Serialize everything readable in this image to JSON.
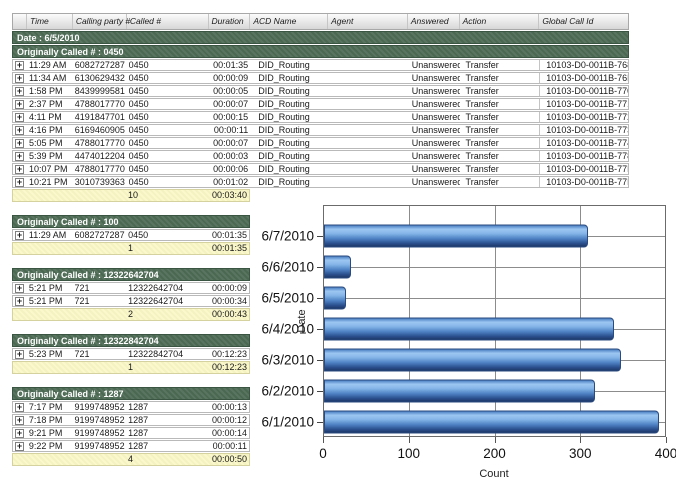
{
  "header": {
    "columns": [
      "Time",
      "Calling party #",
      "Called #",
      "Duration",
      "ACD Name",
      "Agent",
      "Answered",
      "Action",
      "Global Call Id"
    ]
  },
  "date_group_label": "Date : 6/5/2010",
  "icons": {
    "expand": "+"
  },
  "sections": [
    {
      "title": "Originally Called # : 0450",
      "wide": true,
      "rows": [
        {
          "time": "11:29 AM",
          "calling": "6082727287",
          "called": "0450",
          "duration": "00:01:35",
          "acd": "DID_Routing",
          "agent": "",
          "answered": "Unanswered",
          "action": "Transfer",
          "global_id": "10103-D0-0011B-768"
        },
        {
          "time": "11:34 AM",
          "calling": "6130629432",
          "called": "0450",
          "duration": "00:00:09",
          "acd": "DID_Routing",
          "agent": "",
          "answered": "Unanswered",
          "action": "Transfer",
          "global_id": "10103-D0-0011B-76F"
        },
        {
          "time": "1:58 PM",
          "calling": "8439999581",
          "called": "0450",
          "duration": "00:00:05",
          "acd": "DID_Routing",
          "agent": "",
          "answered": "Unanswered",
          "action": "Transfer",
          "global_id": "10103-D0-0011B-770"
        },
        {
          "time": "2:37 PM",
          "calling": "4788017770",
          "called": "0450",
          "duration": "00:00:07",
          "acd": "DID_Routing",
          "agent": "",
          "answered": "Unanswered",
          "action": "Transfer",
          "global_id": "10103-D0-0011B-771"
        },
        {
          "time": "4:11 PM",
          "calling": "4191847701",
          "called": "0450",
          "duration": "00:00:15",
          "acd": "DID_Routing",
          "agent": "",
          "answered": "Unanswered",
          "action": "Transfer",
          "global_id": "10103-D0-0011B-772"
        },
        {
          "time": "4:16 PM",
          "calling": "6169460905",
          "called": "0450",
          "duration": "00:00:11",
          "acd": "DID_Routing",
          "agent": "",
          "answered": "Unanswered",
          "action": "Transfer",
          "global_id": "10103-D0-0011B-773"
        },
        {
          "time": "5:05 PM",
          "calling": "4788017770",
          "called": "0450",
          "duration": "00:00:07",
          "acd": "DID_Routing",
          "agent": "",
          "answered": "Unanswered",
          "action": "Transfer",
          "global_id": "10103-D0-0011B-774"
        },
        {
          "time": "5:39 PM",
          "calling": "4474012204",
          "called": "0450",
          "duration": "00:00:03",
          "acd": "DID_Routing",
          "agent": "",
          "answered": "Unanswered",
          "action": "Transfer",
          "global_id": "10103-D0-0011B-778"
        },
        {
          "time": "10:07 PM",
          "calling": "4788017770",
          "called": "0450",
          "duration": "00:00:06",
          "acd": "DID_Routing",
          "agent": "",
          "answered": "Unanswered",
          "action": "Transfer",
          "global_id": "10103-D0-0011B-77E"
        },
        {
          "time": "10:21 PM",
          "calling": "3010739363",
          "called": "0450",
          "duration": "00:01:02",
          "acd": "DID_Routing",
          "agent": "",
          "answered": "Unanswered",
          "action": "Transfer",
          "global_id": "10103-D0-0011B-77F"
        }
      ],
      "summary": {
        "count": "10",
        "duration": "00:03:40"
      }
    },
    {
      "title": "Originally Called # : 100",
      "wide": false,
      "rows": [
        {
          "time": "11:29 AM",
          "calling": "6082727287",
          "called": "0450",
          "duration": "00:01:35"
        }
      ],
      "summary": {
        "count": "1",
        "duration": "00:01:35"
      }
    },
    {
      "title": "Originally Called # : 12322642704",
      "wide": false,
      "rows": [
        {
          "time": "5:21 PM",
          "calling": "721",
          "called": "12322642704",
          "duration": "00:00:09"
        },
        {
          "time": "5:21 PM",
          "calling": "721",
          "called": "12322642704",
          "duration": "00:00:34"
        }
      ],
      "summary": {
        "count": "2",
        "duration": "00:00:43"
      }
    },
    {
      "title": "Originally Called # : 12322842704",
      "wide": false,
      "rows": [
        {
          "time": "5:23 PM",
          "calling": "721",
          "called": "12322842704",
          "duration": "00:12:23"
        }
      ],
      "summary": {
        "count": "1",
        "duration": "00:12:23"
      }
    },
    {
      "title": "Originally Called # : 1287",
      "wide": false,
      "rows": [
        {
          "time": "7:17 PM",
          "calling": "9199748952",
          "called": "1287",
          "duration": "00:00:13"
        },
        {
          "time": "7:18 PM",
          "calling": "9199748952",
          "called": "1287",
          "duration": "00:00:12"
        },
        {
          "time": "9:21 PM",
          "calling": "9199748952",
          "called": "1287",
          "duration": "00:00:14"
        },
        {
          "time": "9:22 PM",
          "calling": "9199748952",
          "called": "1287",
          "duration": "00:00:11"
        }
      ],
      "summary": {
        "count": "4",
        "duration": "00:00:50"
      }
    }
  ],
  "chart_data": {
    "type": "bar",
    "orientation": "horizontal",
    "title": "",
    "categories": [
      "6/7/2010",
      "6/6/2010",
      "6/5/2010",
      "6/4/2010",
      "6/3/2010",
      "6/2/2010",
      "6/1/2010"
    ],
    "values": [
      310,
      32,
      26,
      340,
      348,
      318,
      393
    ],
    "xlabel": "Count",
    "ylabel": "Date",
    "xlim": [
      0,
      400
    ],
    "xticks": [
      0,
      100,
      200,
      300,
      400
    ],
    "grid": true,
    "legend": "none"
  },
  "colors": {
    "section_header_green": "#4b6852",
    "summary_row_yellow": "#fbf9cc",
    "grid_line": "#8c8c8c",
    "bar_border": "#2b4b80",
    "bar_gradient": [
      "#4a80c2",
      "#9cc6f2",
      "#85b5e8",
      "#4f83c4",
      "#2c5190",
      "#1d3867"
    ]
  }
}
